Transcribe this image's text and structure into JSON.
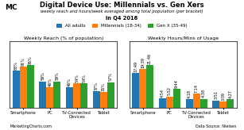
{
  "title": "Digital Device Use: Millennials vs. Gen Xers",
  "subtitle": "weekly reach and hours/week averaged among total population (per bracket)",
  "annotations": [
    "in Q4 2016",
    "MarketingCharts.com",
    "Data Source: Nielsen",
    "MC"
  ],
  "chart_data": [
    {
      "type": "bar",
      "title": "Weekly Reach (% of population)",
      "categories": [
        "Smartphone",
        "PC",
        "TV-Connected\nDevices",
        "Tablet"
      ],
      "series": [
        {
          "name": "All adults",
          "values": [
            83,
            59,
            46,
            37
          ],
          "value_labels": [
            "83%",
            "59%",
            "46%",
            "37%"
          ]
        },
        {
          "name": "Millennials (18-34)",
          "values": [
            91,
            46,
            54,
            35
          ],
          "value_labels": [
            "91%",
            "46%",
            "54%",
            "35%"
          ]
        },
        {
          "name": "Gen X (35-49)",
          "values": [
            95,
            59,
            54,
            57
          ],
          "value_labels": [
            "95%",
            "59%",
            "54%",
            "57%"
          ]
        }
      ],
      "ylim": [
        0,
        147.25
      ],
      "data_labels": true,
      "tick_labels": "x",
      "grid": false,
      "legend": "upper center"
    },
    {
      "type": "bar",
      "title": "Weekly Hours/Mins of Usage",
      "categories": [
        "Smartphone",
        "PC",
        "TV-Connected\nDevices",
        "Tablet"
      ],
      "series": [
        {
          "name": "All adults",
          "values": [
            17.82,
            4.9,
            4.3,
            3.85
          ],
          "value_labels": [
            "17:49",
            "4:54",
            "4:18",
            "3:51"
          ]
        },
        {
          "name": "Millennials (18-34)",
          "values": [
            19.65,
            5.87,
            7.23,
            3.15
          ],
          "value_labels": [
            "19:39",
            "5:52",
            "7:14",
            "3:09"
          ]
        },
        {
          "name": "Gen X (35-49)",
          "values": [
            21.77,
            9.73,
            4.63,
            4.45
          ],
          "value_labels": [
            "21:46",
            "9:44",
            "4:38",
            "4:27"
          ]
        }
      ],
      "ylim": [
        0,
        33.7435
      ],
      "data_labels": true,
      "tick_labels": "x",
      "grid": false
    }
  ]
}
